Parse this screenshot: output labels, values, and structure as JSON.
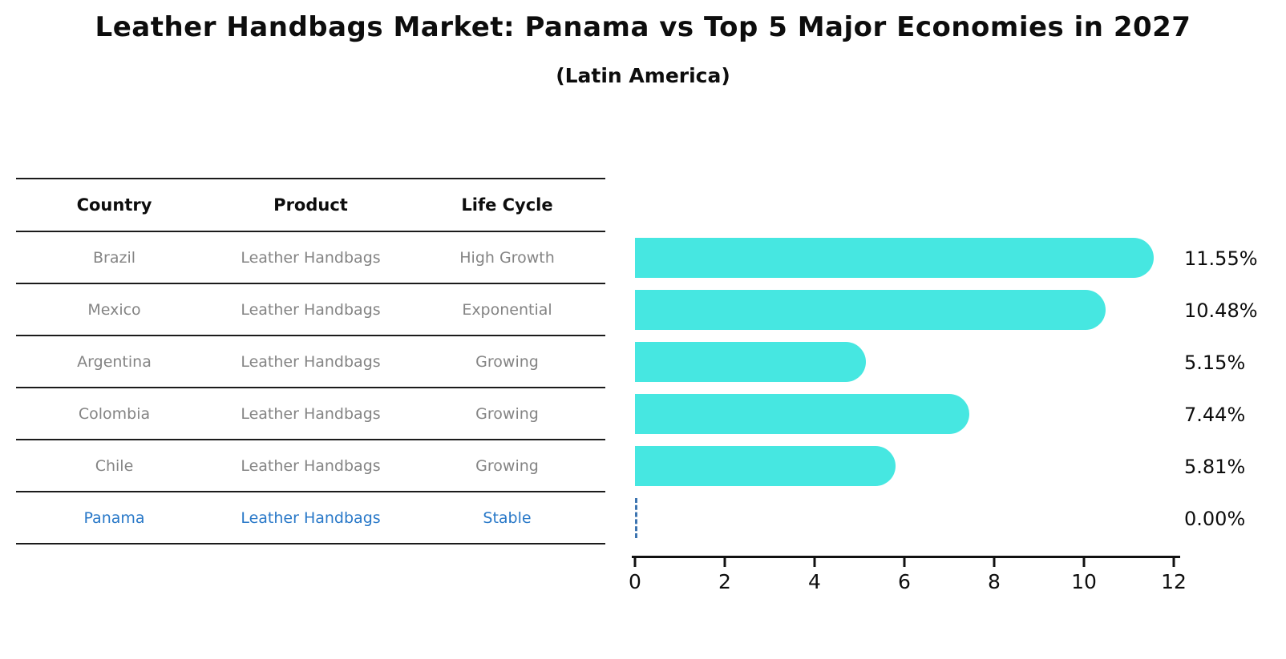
{
  "title": "Leather Handbags Market: Panama vs Top 5 Major Economies in 2027",
  "subtitle": "(Latin America)",
  "table": {
    "columns": [
      "Country",
      "Product",
      "Life Cycle"
    ],
    "rows": [
      {
        "country": "Brazil",
        "product": "Leather Handbags",
        "life_cycle": "High Growth",
        "highlight": false
      },
      {
        "country": "Mexico",
        "product": "Leather Handbags",
        "life_cycle": "Exponential",
        "highlight": false
      },
      {
        "country": "Argentina",
        "product": "Leather Handbags",
        "life_cycle": "Growing",
        "highlight": false
      },
      {
        "country": "Colombia",
        "product": "Leather Handbags",
        "life_cycle": "Growing",
        "highlight": false
      },
      {
        "country": "Chile",
        "product": "Leather Handbags",
        "life_cycle": "Growing",
        "highlight": false
      },
      {
        "country": "Panama",
        "product": "Leather Handbags",
        "life_cycle": "Stable",
        "highlight": true
      }
    ]
  },
  "chart_data": {
    "type": "bar",
    "orientation": "horizontal",
    "title": "Leather Handbags Market: Panama vs Top 5 Major Economies in 2027",
    "subtitle": "(Latin America)",
    "categories": [
      "Brazil",
      "Mexico",
      "Argentina",
      "Colombia",
      "Chile",
      "Panama"
    ],
    "values": [
      11.55,
      10.48,
      5.15,
      7.44,
      5.81,
      0.0
    ],
    "value_labels": [
      "11.55%",
      "10.48%",
      "5.15%",
      "7.44%",
      "5.81%",
      "0.00%"
    ],
    "xlabel": "",
    "ylabel": "",
    "xlim": [
      0,
      12
    ],
    "x_ticks": [
      0,
      2,
      4,
      6,
      8,
      10,
      12
    ],
    "grid": false,
    "legend": "none",
    "bar_color": "#46E7E1",
    "zero_marker_color": "#3C74B0",
    "highlight_text_color": "#2878C8",
    "zero_marker_style": "dashed-vertical-line"
  }
}
